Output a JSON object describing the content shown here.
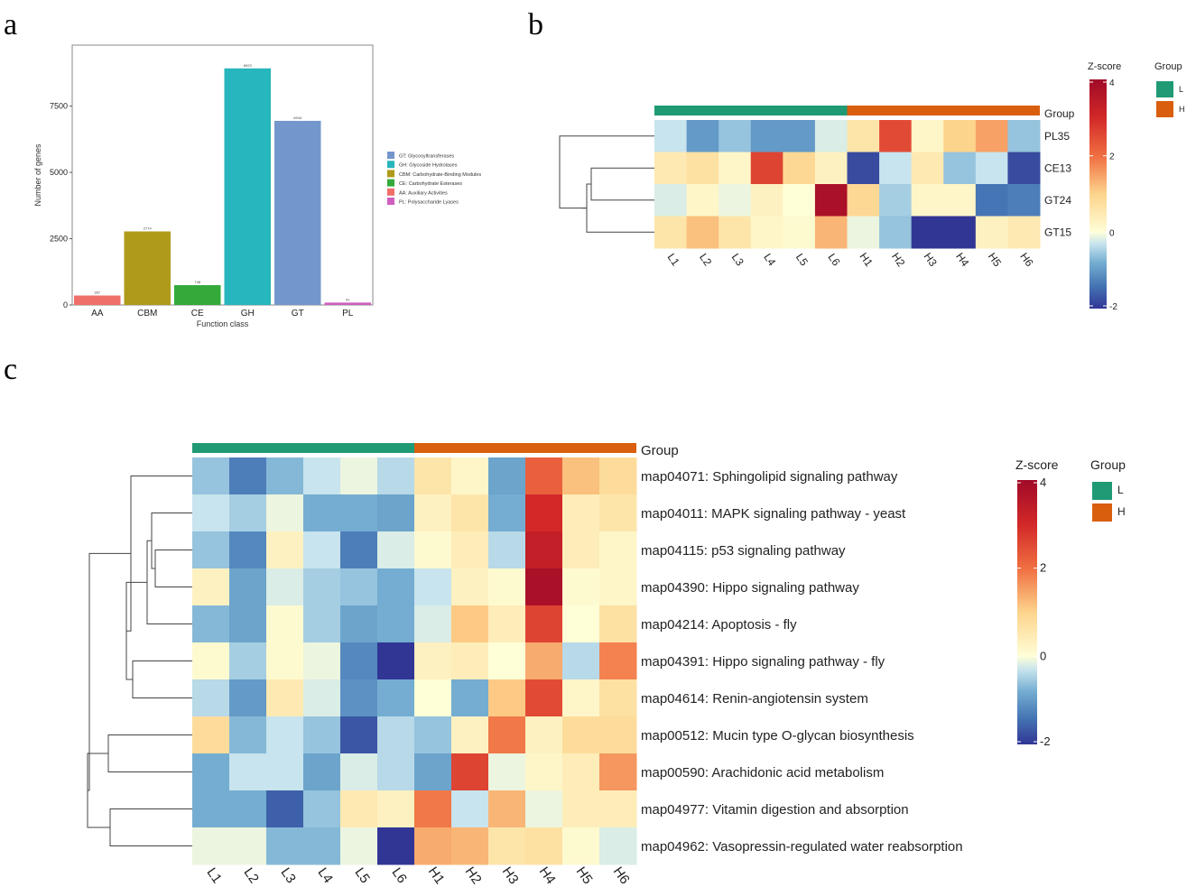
{
  "chart_data": [
    {
      "panel": "a",
      "type": "bar",
      "categories": [
        "AA",
        "CBM",
        "CE",
        "GH",
        "GT",
        "PL"
      ],
      "values": [
        357,
        2774,
        748,
        8923,
        6944,
        91
      ],
      "value_labels": [
        "357",
        "2774",
        "748",
        "8923",
        "6944",
        "91"
      ],
      "colors": [
        "#ef6f6a",
        "#b09a1a",
        "#33aa3a",
        "#27b6bd",
        "#7397cc",
        "#cf5fbf"
      ],
      "xlabel": "Function class",
      "ylabel": "Number of genes",
      "yticks": [
        0,
        2500,
        5000,
        7500
      ],
      "ylim": [
        0,
        9800
      ],
      "legend": [
        {
          "label": "GT: Glycosyltransferases",
          "color": "#7397cc"
        },
        {
          "label": "GH: Glycoside Hydrolases",
          "color": "#27b6bd"
        },
        {
          "label": "CBM: Carbohydrate-Binding Modules",
          "color": "#b09a1a"
        },
        {
          "label": "CE: Carbohydrate Esterases",
          "color": "#33aa3a"
        },
        {
          "label": "AA: Auxiliary Activities",
          "color": "#ef6f6a"
        },
        {
          "label": "PL: Polysaccharide Lyases",
          "color": "#cf5fbf"
        }
      ]
    },
    {
      "panel": "b",
      "type": "heatmap",
      "columns": [
        "L1",
        "L2",
        "L3",
        "L4",
        "L5",
        "L6",
        "H1",
        "H2",
        "H3",
        "H4",
        "H5",
        "H6"
      ],
      "rows": [
        "PL35",
        "CE13",
        "GT24",
        "GT15"
      ],
      "values": [
        [
          -0.3,
          -1.0,
          -0.6,
          -1.0,
          -1.0,
          -0.2,
          0.6,
          2.5,
          0.2,
          1.0,
          1.5,
          -0.6
        ],
        [
          0.5,
          0.7,
          0.2,
          2.6,
          0.9,
          0.3,
          -1.8,
          -0.3,
          0.5,
          -0.6,
          -0.3,
          -1.8
        ],
        [
          -0.2,
          0.2,
          -0.1,
          0.3,
          0.0,
          3.8,
          0.9,
          -0.5,
          0.2,
          0.2,
          -1.4,
          -1.3
        ],
        [
          0.6,
          1.2,
          0.6,
          0.2,
          0.1,
          1.3,
          -0.1,
          -0.6,
          -2.0,
          -2.0,
          0.3,
          0.5
        ]
      ],
      "group_label": "Group",
      "zscore_title": "Z-score",
      "zscore_ticks": [
        4,
        2,
        0,
        -2
      ],
      "zlim": [
        -2,
        4
      ],
      "groups": [
        {
          "label": "L",
          "color": "#1f9a74"
        },
        {
          "label": "H",
          "color": "#d95f0e"
        }
      ]
    },
    {
      "panel": "c",
      "type": "heatmap",
      "columns": [
        "L1",
        "L2",
        "L3",
        "L4",
        "L5",
        "L6",
        "H1",
        "H2",
        "H3",
        "H4",
        "H5",
        "H6"
      ],
      "rows": [
        "map04071: Sphingolipid signaling pathway",
        "map04011: MAPK signaling pathway - yeast",
        "map04115: p53 signaling pathway",
        "map04390: Hippo signaling pathway",
        "map04214: Apoptosis - fly",
        "map04391: Hippo signaling pathway - fly",
        "map04614: Renin-angiotensin system",
        "map00512: Mucin type O-glycan biosynthesis",
        "map00590: Arachidonic acid metabolism",
        "map04977: Vitamin digestion and absorption",
        "map04962: Vasopressin-regulated water reabsorption"
      ],
      "values": [
        [
          -0.6,
          -1.3,
          -0.7,
          -0.3,
          -0.1,
          -0.4,
          0.6,
          0.2,
          -0.9,
          2.2,
          1.2,
          0.8
        ],
        [
          -0.3,
          -0.5,
          -0.1,
          -0.8,
          -0.8,
          -0.9,
          0.3,
          0.6,
          -0.8,
          3.0,
          0.4,
          0.6
        ],
        [
          -0.6,
          -1.2,
          0.3,
          -0.3,
          -1.3,
          -0.2,
          0.1,
          0.4,
          -0.4,
          3.3,
          0.4,
          0.2
        ],
        [
          0.3,
          -0.9,
          -0.2,
          -0.5,
          -0.6,
          -0.8,
          -0.3,
          0.3,
          0.1,
          3.8,
          0.1,
          0.2
        ],
        [
          -0.7,
          -0.9,
          0.1,
          -0.5,
          -0.9,
          -0.8,
          -0.2,
          1.1,
          0.4,
          2.6,
          0.0,
          0.7
        ],
        [
          0.1,
          -0.5,
          0.1,
          -0.1,
          -1.2,
          -2.0,
          0.3,
          0.4,
          0.0,
          1.4,
          -0.4,
          1.8
        ],
        [
          -0.4,
          -1.0,
          0.5,
          -0.2,
          -1.1,
          -0.8,
          0.0,
          -0.8,
          1.1,
          2.5,
          0.2,
          0.7
        ],
        [
          0.8,
          -0.7,
          -0.3,
          -0.6,
          -1.7,
          -0.4,
          -0.6,
          0.3,
          1.9,
          0.3,
          0.8,
          0.8
        ],
        [
          -0.8,
          -0.3,
          -0.3,
          -0.9,
          -0.2,
          -0.4,
          -0.9,
          2.6,
          -0.1,
          0.2,
          0.4,
          1.6
        ],
        [
          -0.8,
          -0.8,
          -1.6,
          -0.6,
          0.5,
          0.3,
          1.9,
          -0.3,
          1.3,
          -0.1,
          0.4,
          0.4
        ],
        [
          -0.1,
          -0.1,
          -0.7,
          -0.7,
          -0.1,
          -2.0,
          1.4,
          1.3,
          0.6,
          0.7,
          0.1,
          -0.2
        ]
      ],
      "group_label": "Group",
      "zscore_title": "Z-score",
      "zscore_ticks": [
        4,
        2,
        0,
        -2
      ],
      "zlim": [
        -2,
        4
      ],
      "groups": [
        {
          "label": "L",
          "color": "#1f9a74"
        },
        {
          "label": "H",
          "color": "#d95f0e"
        }
      ]
    }
  ],
  "panel_labels": [
    "a",
    "b",
    "c"
  ]
}
